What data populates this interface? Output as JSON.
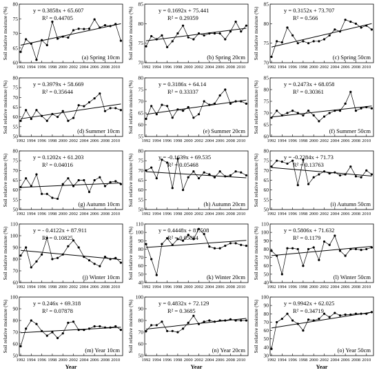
{
  "figure": {
    "ylabel": "Soil relative moisture (%)",
    "xlabel": "Year",
    "xticks": [
      "1992",
      "1994",
      "1996",
      "1998",
      "2000",
      "2002",
      "2004",
      "2006",
      "2008",
      "2010"
    ]
  },
  "chart_data": [
    {
      "type": "scatter",
      "panel": "(a) Spring 10cm",
      "equation": "y = 0.3858x + 65.607",
      "r2": "R² = 0.44705",
      "ylim": [
        60,
        80
      ],
      "yticks": [
        60,
        65,
        70,
        75,
        80
      ],
      "x": [
        1992,
        1993,
        1994,
        1995,
        1996,
        1997,
        1998,
        1999,
        2000,
        2001,
        2002,
        2003,
        2004,
        2005,
        2006,
        2007,
        2008,
        2009,
        2010,
        2011
      ],
      "values": [
        63.7,
        68.0,
        66.5,
        61.0,
        67.7,
        66.0,
        74.0,
        68.2,
        68.9,
        68.6,
        71.1,
        71.6,
        71.5,
        71.6,
        74.8,
        72.0,
        72.8,
        72.5,
        73.2,
        67.5
      ]
    },
    {
      "type": "scatter",
      "panel": "(b) Spring 20cm",
      "equation": "y = 0.1692x + 75.441",
      "r2": "R² = 0.29359",
      "ylim": [
        70,
        85
      ],
      "yticks": [
        70,
        75,
        80,
        85
      ],
      "x": [
        1992,
        1993,
        1994,
        1995,
        1996,
        1997,
        1998,
        1999,
        2000,
        2001,
        2002,
        2003,
        2004,
        2005,
        2006,
        2007,
        2008,
        2009,
        2010,
        2011
      ],
      "values": [
        74.2,
        76.8,
        76.0,
        77.0,
        74.0,
        75.5,
        77.5,
        79.5,
        76.5,
        76.0,
        77.5,
        77.0,
        77.5,
        77.5,
        77.5,
        76.0,
        78.0,
        80.5,
        78.0,
        79.5
      ]
    },
    {
      "type": "scatter",
      "panel": "(c) Spring 50cm",
      "equation": "y = 0.3152x + 73.707",
      "r2": "R² = 0.566",
      "ylim": [
        70,
        85
      ],
      "yticks": [
        70,
        75,
        80,
        85
      ],
      "x": [
        1992,
        1993,
        1994,
        1995,
        1996,
        1997,
        1998,
        1999,
        2000,
        2001,
        2002,
        2003,
        2004,
        2005,
        2006,
        2007,
        2008,
        2009,
        2010,
        2011
      ],
      "values": [
        71.5,
        75.5,
        75.2,
        79.0,
        77.0,
        75.0,
        75.5,
        75.0,
        75.5,
        75.5,
        76.0,
        77.0,
        78.5,
        78.0,
        81.0,
        80.5,
        80.0,
        79.0,
        79.5,
        78.5
      ]
    },
    {
      "type": "scatter",
      "panel": "(d) Summer 10cm",
      "equation": "y = 0.3979x + 58.669",
      "r2": "R² = 0.35644",
      "ylim": [
        50,
        80
      ],
      "yticks": [
        50,
        55,
        60,
        65,
        70,
        75,
        80
      ],
      "x": [
        1992,
        1993,
        1994,
        1995,
        1996,
        1997,
        1998,
        1999,
        2000,
        2001,
        2002,
        2003,
        2004,
        2005,
        2006,
        2007,
        2008,
        2009,
        2010,
        2011
      ],
      "values": [
        58.0,
        63.5,
        59.0,
        63.5,
        60.5,
        58.0,
        61.5,
        60.0,
        63.0,
        58.0,
        59.5,
        66.0,
        65.5,
        67.5,
        69.5,
        72.0,
        63.0,
        64.5,
        64.5,
        63.5
      ]
    },
    {
      "type": "scatter",
      "panel": "(e) Summer 20cm",
      "equation": "y = 0.3186x + 64.14",
      "r2": "R² = 0.33337",
      "ylim": [
        55,
        80
      ],
      "yticks": [
        55,
        60,
        65,
        70,
        75,
        80
      ],
      "x": [
        1992,
        1993,
        1994,
        1995,
        1996,
        1997,
        1998,
        1999,
        2000,
        2001,
        2002,
        2003,
        2004,
        2005,
        2006,
        2007,
        2008,
        2009,
        2010,
        2011
      ],
      "values": [
        62.5,
        68.0,
        64.5,
        68.5,
        68.0,
        63.0,
        66.5,
        66.0,
        67.5,
        63.0,
        64.5,
        70.0,
        68.5,
        69.0,
        72.5,
        75.0,
        69.0,
        70.0,
        70.0,
        69.0
      ]
    },
    {
      "type": "scatter",
      "panel": "(f) Summer 50cm",
      "equation": "y = 0.2473x + 68.058",
      "r2": "R² = 0.30361",
      "ylim": [
        60,
        85
      ],
      "yticks": [
        60,
        65,
        70,
        75,
        80,
        85
      ],
      "x": [
        1992,
        1993,
        1994,
        1995,
        1996,
        1997,
        1998,
        1999,
        2000,
        2001,
        2002,
        2003,
        2004,
        2005,
        2006,
        2007,
        2008,
        2009,
        2010,
        2011
      ],
      "values": [
        68.0,
        71.0,
        69.0,
        70.0,
        71.0,
        70.0,
        69.0,
        71.0,
        69.0,
        66.5,
        68.5,
        70.0,
        71.0,
        71.0,
        74.0,
        79.0,
        71.0,
        72.0,
        72.5,
        72.0
      ]
    },
    {
      "type": "scatter",
      "panel": "(g) Autumn 10cm",
      "equation": "y = 0.1202x + 61.203",
      "r2": "R² = 0.04016",
      "ylim": [
        50,
        80
      ],
      "yticks": [
        50,
        55,
        60,
        65,
        70,
        75,
        80
      ],
      "x": [
        1992,
        1993,
        1994,
        1995,
        1996,
        1997,
        1998,
        1999,
        2000,
        2001,
        2002,
        2003,
        2004,
        2005,
        2006,
        2007,
        2008,
        2009,
        2010,
        2011
      ],
      "values": [
        61.5,
        66.0,
        62.0,
        68.0,
        58.0,
        58.0,
        56.0,
        55.5,
        63.0,
        66.0,
        62.0,
        65.0,
        65.0,
        59.0,
        65.0,
        66.5,
        62.0,
        64.0,
        64.5,
        63.0
      ]
    },
    {
      "type": "scatter",
      "panel": "(h) Autumn 20cm",
      "equation": "y = -0.1639x + 69.535",
      "r2": "R² = 0.05468",
      "ylim": [
        50,
        80
      ],
      "yticks": [
        50,
        55,
        60,
        65,
        70,
        75,
        80
      ],
      "x": [
        1992,
        1993,
        1994,
        1995,
        1996,
        1997,
        1998,
        1999,
        2000,
        2001,
        2002,
        2003,
        2004,
        2005,
        2006,
        2007,
        2008,
        2009,
        2010,
        2011
      ],
      "values": [
        70.0,
        71.5,
        66.0,
        75.5,
        74.0,
        61.0,
        76.0,
        60.0,
        66.5,
        69.5,
        66.0,
        69.0,
        68.0,
        66.5,
        69.5,
        67.0,
        67.5,
        69.5,
        69.0,
        67.5
      ]
    },
    {
      "type": "scatter",
      "panel": "(i) Autumn 50cm",
      "equation": "y = -0.2284x + 71.73",
      "r2": "R² = 0.13763",
      "ylim": [
        50,
        80
      ],
      "yticks": [
        50,
        55,
        60,
        65,
        70,
        75,
        80
      ],
      "x": [
        1992,
        1993,
        1994,
        1995,
        1996,
        1997,
        1998,
        1999,
        2000,
        2001,
        2002,
        2003,
        2004,
        2005,
        2006,
        2007,
        2008,
        2009,
        2010,
        2011
      ],
      "values": [
        72.0,
        75.0,
        74.5,
        73.5,
        75.0,
        62.5,
        75.5,
        63.0,
        66.5,
        68.0,
        69.5,
        68.5,
        69.0,
        67.5,
        68.0,
        72.0,
        67.0,
        66.5,
        70.0,
        68.0
      ]
    },
    {
      "type": "scatter",
      "panel": "(j) Winter 10cm",
      "equation": "y = - 0.4122x + 87.911",
      "r2": "R² = 0.10825",
      "ylim": [
        60,
        110
      ],
      "yticks": [
        60,
        70,
        80,
        90,
        100,
        110
      ],
      "x": [
        1992,
        1993,
        1994,
        1995,
        1996,
        1997,
        1998,
        1999,
        2000,
        2001,
        2002,
        2003,
        2004,
        2005,
        2006,
        2007,
        2008,
        2009,
        2010,
        2011
      ],
      "values": [
        83.0,
        90.0,
        73.0,
        78.0,
        84.0,
        98.0,
        80.0,
        81.0,
        84.0,
        91.0,
        96.0,
        90.0,
        82.0,
        79.0,
        76.0,
        74.0,
        82.0,
        80.0,
        81.0,
        77.0
      ]
    },
    {
      "type": "scatter",
      "panel": "(k) Winter 20cm",
      "equation": "y = 0.4448x + 81.508",
      "r2": "R² = 0.05084",
      "ylim": [
        40,
        110
      ],
      "yticks": [
        40,
        50,
        60,
        70,
        80,
        90,
        100,
        110
      ],
      "x": [
        1992,
        1993,
        1994,
        1995,
        1996,
        1997,
        1998,
        1999,
        2000,
        2001,
        2002,
        2003,
        2004,
        2005,
        2006,
        2007,
        2008,
        2009,
        2010,
        2011
      ],
      "values": [
        86.0,
        68.0,
        49.0,
        86.0,
        93.0,
        85.0,
        92.0,
        90.0,
        97.0,
        92.0,
        104.0,
        98.0,
        83.0,
        81.0,
        81.0,
        84.0,
        87.0,
        87.0,
        85.0,
        84.0
      ]
    },
    {
      "type": "scatter",
      "panel": "(l) Winter 50cm",
      "equation": "y = 0.5806x + 71.632",
      "r2": "R² = 0.1179",
      "ylim": [
        40,
        110
      ],
      "yticks": [
        40,
        50,
        60,
        70,
        80,
        90,
        100,
        110
      ],
      "x": [
        1992,
        1993,
        1994,
        1995,
        1996,
        1997,
        1998,
        1999,
        2000,
        2001,
        2002,
        2003,
        2004,
        2005,
        2006,
        2007,
        2008,
        2009,
        2010,
        2011
      ],
      "values": [
        78.0,
        72.0,
        50.0,
        81.0,
        81.0,
        80.0,
        60.0,
        80.0,
        82.0,
        67.0,
        89.0,
        85.0,
        96.0,
        78.0,
        72.0,
        80.0,
        80.0,
        79.0,
        80.0,
        82.0
      ]
    },
    {
      "type": "scatter",
      "panel": "(m) Year 10cm",
      "equation": "y = 0.246x + 69.318",
      "r2": "R² = 0.07878",
      "ylim": [
        50,
        100
      ],
      "yticks": [
        50,
        60,
        70,
        80,
        90,
        100
      ],
      "x": [
        1992,
        1993,
        1994,
        1995,
        1996,
        1997,
        1998,
        1999,
        2000,
        2001,
        2002,
        2003,
        2004,
        2005,
        2006,
        2007,
        2008,
        2009,
        2010,
        2011
      ],
      "values": [
        58.0,
        73.0,
        80.0,
        77.0,
        71.0,
        67.0,
        70.0,
        65.0,
        69.0,
        78.0,
        79.0,
        72.0,
        72.0,
        73.0,
        75.0,
        75.0,
        74.0,
        74.0,
        75.0,
        72.0
      ]
    },
    {
      "type": "scatter",
      "panel": "(n) Year 20cm",
      "equation": "y = 0.4832x + 72.129",
      "r2": "R² = 0.3685",
      "ylim": [
        50,
        100
      ],
      "yticks": [
        50,
        60,
        70,
        80,
        90,
        100
      ],
      "x": [
        1992,
        1993,
        1994,
        1995,
        1996,
        1997,
        1998,
        1999,
        2000,
        2001,
        2002,
        2003,
        2004,
        2005,
        2006,
        2007,
        2008,
        2009,
        2010,
        2011
      ],
      "values": [
        71.0,
        76.0,
        76.0,
        79.0,
        71.0,
        71.0,
        70.0,
        73.0,
        78.0,
        84.0,
        77.0,
        79.0,
        80.0,
        79.0,
        80.0,
        80.0,
        81.0,
        80.0,
        80.0,
        80.0
      ]
    },
    {
      "type": "scatter",
      "panel": "(o) Year 50cm",
      "equation": "y = 0.9942x + 62.025",
      "r2": "R² = 0.34719",
      "ylim": [
        30,
        100
      ],
      "yticks": [
        30,
        40,
        50,
        60,
        70,
        80,
        90,
        100
      ],
      "x": [
        1992,
        1993,
        1994,
        1995,
        1996,
        1997,
        1998,
        1999,
        2000,
        2001,
        2002,
        2003,
        2004,
        2005,
        2006,
        2007,
        2008,
        2009,
        2010,
        2011
      ],
      "values": [
        38.0,
        70.0,
        74.0,
        80.0,
        72.0,
        68.0,
        60.0,
        73.0,
        72.0,
        74.0,
        80.0,
        76.0,
        81.0,
        78.0,
        79.0,
        79.0,
        80.0,
        80.0,
        80.0,
        82.0
      ]
    }
  ]
}
